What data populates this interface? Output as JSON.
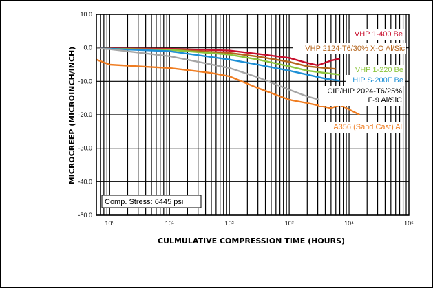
{
  "chart_data": {
    "type": "line",
    "xlabel": "CULMULATIVE COMPRESSION TIME (HOURS)",
    "ylabel": "MICROCREEP (MICROINCH/INCH)",
    "x_scale": "log",
    "xlim": [
      0.6,
      100000
    ],
    "ylim": [
      -50,
      10
    ],
    "x_ticks": [
      1,
      10,
      100,
      1000,
      10000,
      100000
    ],
    "x_tick_labels": [
      "10⁰",
      "10¹",
      "10²",
      "10³",
      "10⁴",
      "10⁵"
    ],
    "y_ticks": [
      10,
      0,
      -10,
      -20,
      -30,
      -40,
      -50
    ],
    "y_tick_labels": [
      "10.0",
      "0.0",
      "-10.0",
      "-20.0",
      "-30.0",
      "-40.0",
      "-50.0"
    ],
    "grid": true,
    "annotation": "Comp. Stress: 6445 psi",
    "series": [
      {
        "name": "VHP 1-400 Be",
        "color": "#c8102e",
        "x": [
          0.6,
          1,
          10,
          100,
          300,
          1000,
          2000,
          3000,
          5000,
          7000
        ],
        "y": [
          -0.2,
          -0.2,
          -0.3,
          -0.8,
          -1.8,
          -3.0,
          -4.5,
          -5.2,
          -3.8,
          -3.2
        ]
      },
      {
        "name": "VHP 2124-T6/30% X-O Al/Sic",
        "color": "#b5651d",
        "x": [
          0.6,
          1,
          10,
          100,
          300,
          1000,
          2000,
          4000,
          6000
        ],
        "y": [
          -0.2,
          -0.3,
          -0.5,
          -1.5,
          -2.6,
          -4.2,
          -5.5,
          -6.0,
          -6.3
        ]
      },
      {
        "name": "VHP 1-220 Be",
        "color": "#8dc63f",
        "x": [
          0.6,
          1,
          10,
          100,
          300,
          1000,
          2000,
          4000,
          7000
        ],
        "y": [
          -0.2,
          -0.3,
          -0.6,
          -2.0,
          -3.5,
          -5.5,
          -6.8,
          -7.5,
          -8.0
        ]
      },
      {
        "name": "HIP S-200F Be",
        "color": "#1e90d6",
        "x": [
          0.6,
          1,
          10,
          100,
          300,
          1000,
          2000,
          4000,
          7000
        ],
        "y": [
          -0.2,
          -0.3,
          -1.0,
          -3.5,
          -5.0,
          -6.8,
          -8.0,
          -9.2,
          -9.8
        ]
      },
      {
        "name": "CIP/HIP 2024-T6/25% F-9 Al/SiC",
        "color": "#a6a6a6",
        "x": [
          0.6,
          1,
          10,
          100,
          300,
          1000,
          2000,
          4000
        ],
        "y": [
          -0.2,
          -0.4,
          -2.5,
          -6.0,
          -8.8,
          -12.5,
          -14.5,
          -16.0
        ]
      },
      {
        "name": "A356 (Sand Cast) Al",
        "color": "#ef7d22",
        "x": [
          0.6,
          1,
          3,
          10,
          50,
          100,
          300,
          1000,
          2000,
          5000,
          7000,
          15000
        ],
        "y": [
          -3.5,
          -5.0,
          -5.5,
          -6.0,
          -7.5,
          -8.5,
          -12.0,
          -15.5,
          -16.5,
          -18.0,
          -17.0,
          -20.0
        ]
      }
    ]
  }
}
